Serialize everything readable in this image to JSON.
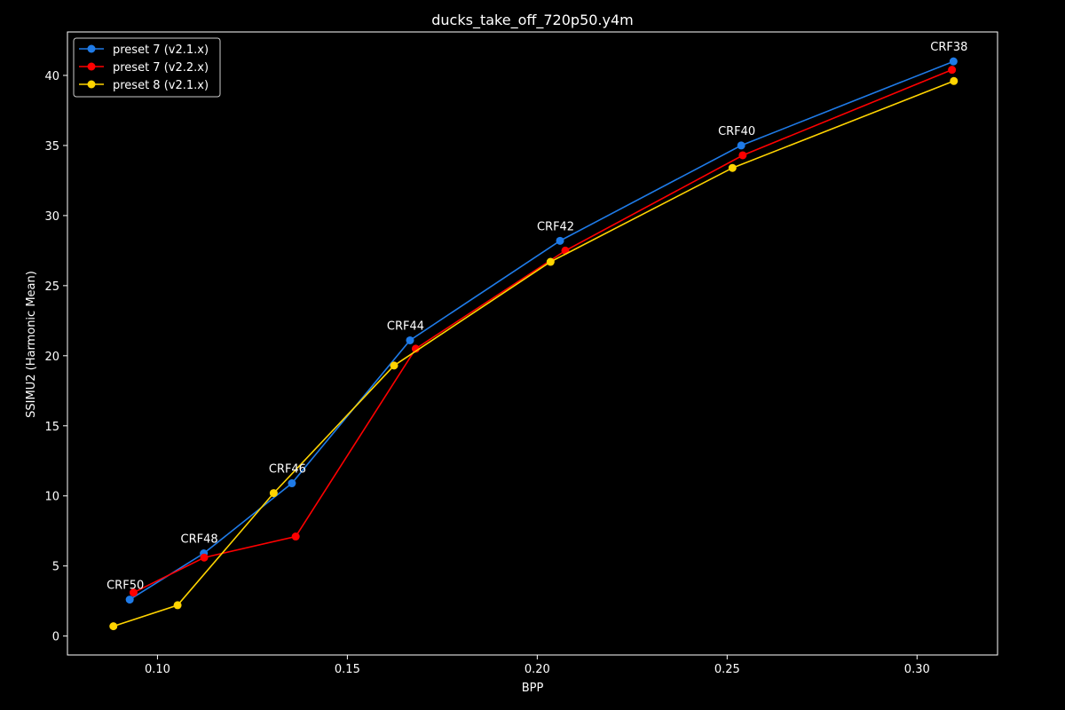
{
  "chart_data": {
    "type": "line",
    "title": "ducks_take_off_720p50.y4m",
    "xlabel": "BPP",
    "ylabel": "SSIMU2 (Harmonic Mean)",
    "xlim": [
      0.0763,
      0.3212
    ],
    "ylim": [
      -1.35,
      43.1
    ],
    "xticks": [
      0.1,
      0.15,
      0.2,
      0.25,
      0.3
    ],
    "xtick_labels": [
      "0.10",
      "0.15",
      "0.20",
      "0.25",
      "0.30"
    ],
    "yticks": [
      0,
      5,
      10,
      15,
      20,
      25,
      30,
      35,
      40
    ],
    "ytick_labels": [
      "0",
      "5",
      "10",
      "15",
      "20",
      "25",
      "30",
      "35",
      "40"
    ],
    "grid": false,
    "legend_position": "top-left",
    "series": [
      {
        "name": "preset 7 (v2.1.x)",
        "color": "#1f7be8",
        "x": [
          0.0927,
          0.1122,
          0.1354,
          0.1665,
          0.206,
          0.2537,
          0.3096
        ],
        "y": [
          2.6,
          5.9,
          10.9,
          21.1,
          28.2,
          35.0,
          41.0
        ]
      },
      {
        "name": "preset 7 (v2.2.x)",
        "color": "#ff0000",
        "x": [
          0.0937,
          0.1123,
          0.1364,
          0.168,
          0.2074,
          0.2541,
          0.3092
        ],
        "y": [
          3.1,
          5.6,
          7.1,
          20.5,
          27.5,
          34.3,
          40.4
        ]
      },
      {
        "name": "preset 8 (v2.1.x)",
        "color": "#ffd400",
        "x": [
          0.0884,
          0.1053,
          0.1306,
          0.1623,
          0.2035,
          0.2514,
          0.3097
        ],
        "y": [
          0.7,
          2.2,
          10.2,
          19.3,
          26.7,
          33.4,
          39.6
        ]
      }
    ],
    "annotations": [
      {
        "text": "CRF50",
        "x": 0.0927,
        "y": 2.6
      },
      {
        "text": "CRF48",
        "x": 0.1122,
        "y": 5.9
      },
      {
        "text": "CRF46",
        "x": 0.1354,
        "y": 10.9
      },
      {
        "text": "CRF44",
        "x": 0.1665,
        "y": 21.1
      },
      {
        "text": "CRF42",
        "x": 0.206,
        "y": 28.2
      },
      {
        "text": "CRF40",
        "x": 0.2537,
        "y": 35.0
      },
      {
        "text": "CRF38",
        "x": 0.3096,
        "y": 41.0
      }
    ]
  }
}
